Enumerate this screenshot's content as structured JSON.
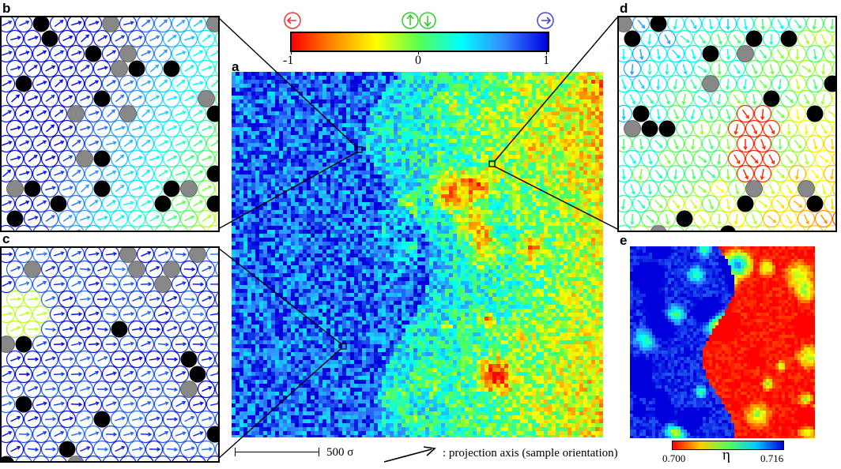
{
  "panels": {
    "a": "a",
    "b": "b",
    "c": "c",
    "d": "d",
    "e": "e"
  },
  "colorbar_top": {
    "ticks": [
      "-1",
      "0",
      "1"
    ],
    "colors": [
      "#ff0000",
      "#ff8800",
      "#ffff00",
      "#55ff55",
      "#00ffff",
      "#3388ff",
      "#0000dd"
    ]
  },
  "scale_bar": {
    "label": "500 σ"
  },
  "projection_note": {
    "label": ": projection axis (sample orientation)"
  },
  "colorbar_eta": {
    "symbol": "η",
    "min_label": "0.700",
    "max_label": "0.716"
  },
  "icons": [
    "left-arrow-circle-icon",
    "up-arrow-circle-icon",
    "down-arrow-circle-icon",
    "right-arrow-circle-icon",
    "projection-arrow-icon"
  ]
}
